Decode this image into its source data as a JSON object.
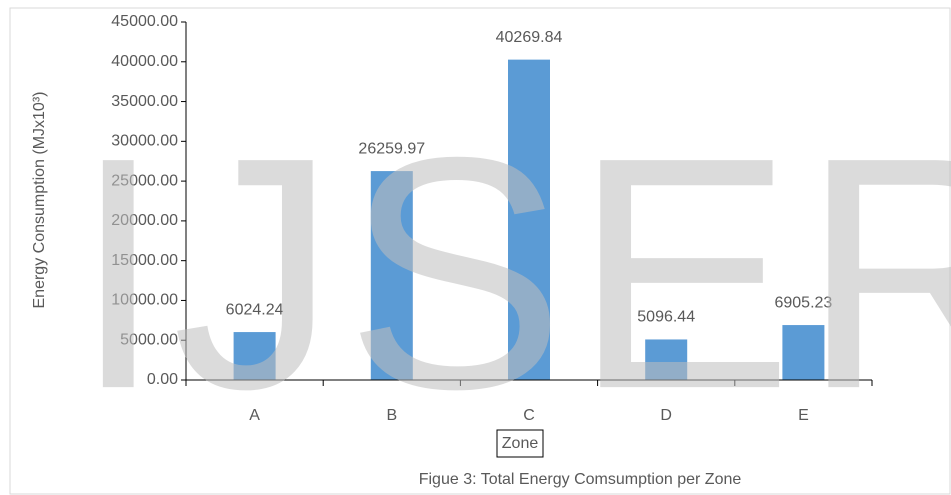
{
  "chart_data": {
    "type": "bar",
    "y_label": "Energy Consumption (MJx10³)",
    "x_label": "Zone",
    "caption": "Figue 3: Total Energy Comsumption per Zone",
    "watermark": "IJSER",
    "categories": [
      "A",
      "B",
      "C",
      "D",
      "E"
    ],
    "values": [
      6024.24,
      26259.97,
      40269.84,
      5096.44,
      6905.23
    ],
    "color": "#5b9bd5",
    "ylim": [
      0,
      45000
    ],
    "yticks": [
      {
        "value": 0,
        "label": "0.00"
      },
      {
        "value": 5000,
        "label": "5000.00"
      },
      {
        "value": 10000,
        "label": "10000.00"
      },
      {
        "value": 15000,
        "label": "15000.00"
      },
      {
        "value": 20000,
        "label": "20000.00"
      },
      {
        "value": 25000,
        "label": "25000.00"
      },
      {
        "value": 30000,
        "label": "30000.00"
      },
      {
        "value": 35000,
        "label": "35000.00"
      },
      {
        "value": 40000,
        "label": "40000.00"
      },
      {
        "value": 45000,
        "label": "45000.00"
      }
    ],
    "grid": false
  }
}
